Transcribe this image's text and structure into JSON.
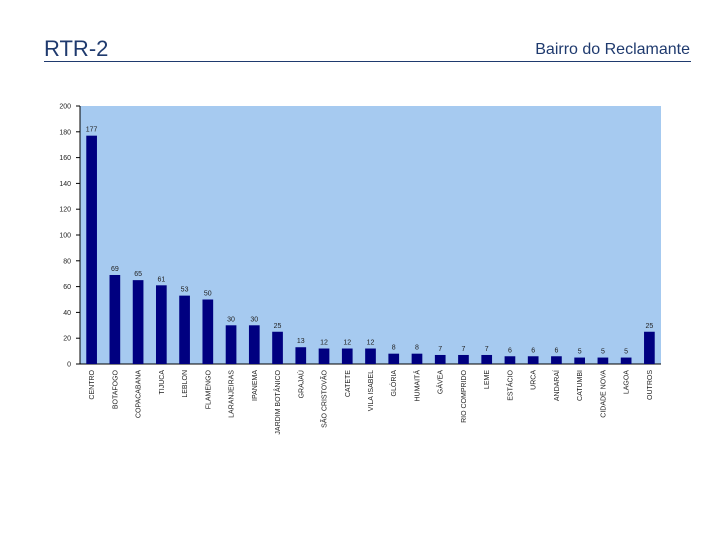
{
  "slide": {
    "title": "RTR-2",
    "subtitle": "Bairro do Reclamante"
  },
  "colors": {
    "plot_background": "#A6CAF0",
    "bar": "#000080",
    "title": "#1F3A6E"
  },
  "chart_data": {
    "type": "bar",
    "title": "",
    "xlabel": "",
    "ylabel": "",
    "ylim": [
      0,
      200
    ],
    "yticks": [
      0,
      20,
      40,
      60,
      80,
      100,
      120,
      140,
      160,
      180,
      200
    ],
    "grid": false,
    "legend": "none",
    "categories": [
      "CENTRO",
      "BOTAFOGO",
      "COPACABANA",
      "TIJUCA",
      "LEBLON",
      "FLAMENGO",
      "LARANJEIRAS",
      "IPANEMA",
      "JARDIM BOTÂNICO",
      "GRAJAÚ",
      "SÃO CRISTOVÃO",
      "CATETE",
      "VILA ISABEL",
      "GLÓRIA",
      "HUMAITÁ",
      "GÁVEA",
      "RIO COMPRIDO",
      "LEME",
      "ESTÁCIO",
      "URCA",
      "ANDARAÍ",
      "CATUMBI",
      "CIDADE NOVA",
      "LAGOA",
      "OUTROS"
    ],
    "values": [
      177,
      69,
      65,
      61,
      53,
      50,
      30,
      30,
      25,
      13,
      12,
      12,
      12,
      8,
      8,
      7,
      7,
      7,
      6,
      6,
      6,
      5,
      5,
      5,
      25
    ]
  }
}
